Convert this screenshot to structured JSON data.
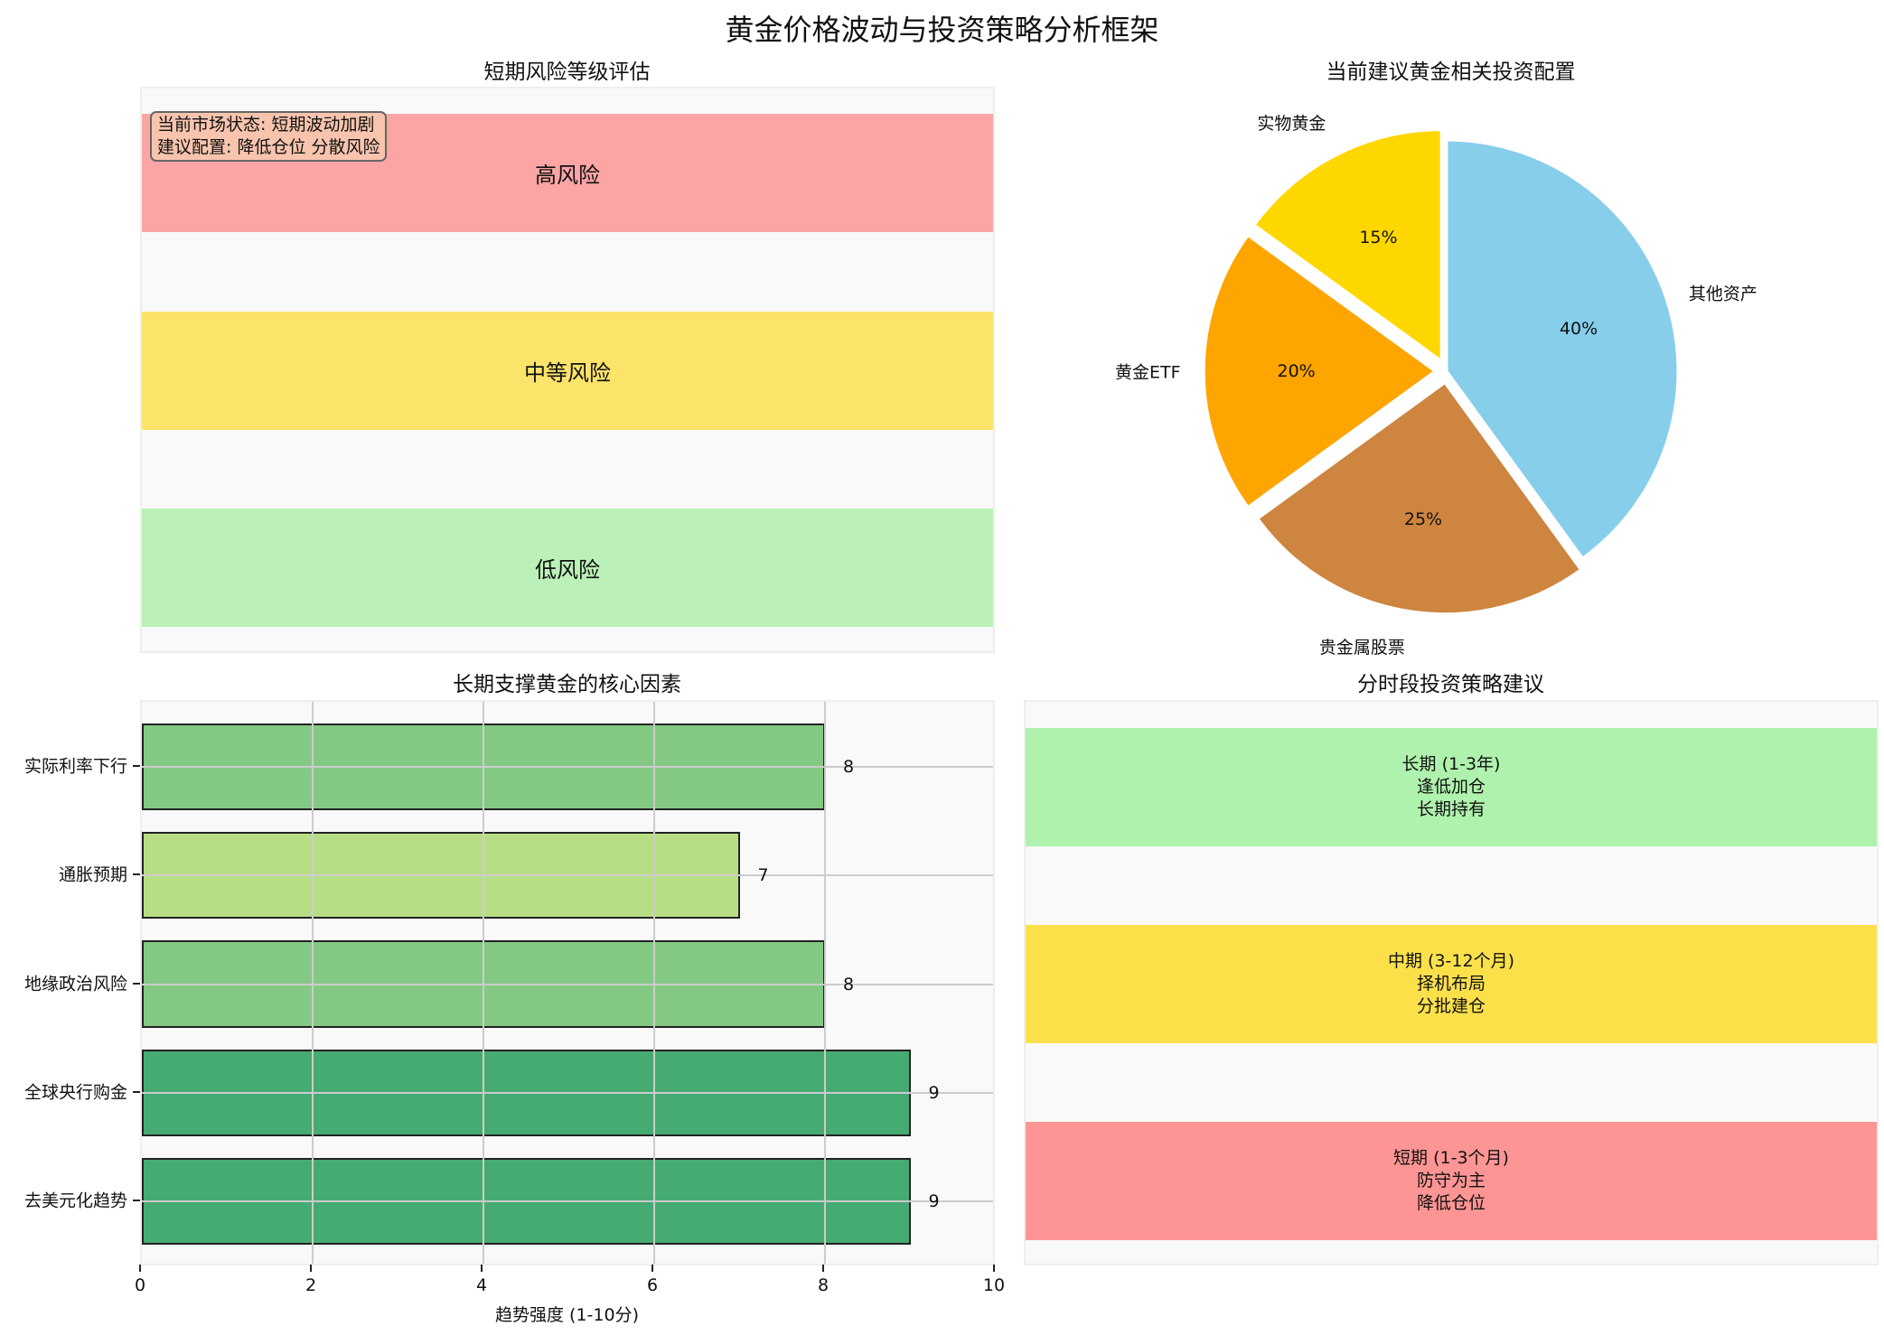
{
  "suptitle": "黄金价格波动与投资策略分析框架",
  "risk_panel": {
    "title": "短期风险等级评估",
    "note": "当前市场状态: 短期波动加剧\n建议配置: 降低仓位 分散风险",
    "bands": [
      {
        "label": "高风险",
        "color": "#fca5a5"
      },
      {
        "label": "中等风险",
        "color": "#fce36a"
      },
      {
        "label": "低风险",
        "color": "#bbf1b8"
      }
    ]
  },
  "allocation_panel": {
    "title": "当前建议黄金相关投资配置"
  },
  "factors_panel": {
    "title": "长期支撑黄金的核心因素",
    "xlabel": "趋势强度 (1-10分)",
    "xticks": [
      "0",
      "2",
      "4",
      "6",
      "8",
      "10"
    ]
  },
  "strategy_panel": {
    "title": "分时段投资策略建议",
    "bands": [
      {
        "label": "长期 (1-3年)\n逢低加仓\n长期持有",
        "color": "#aff2ad"
      },
      {
        "label": "中期 (3-12个月)\n择机布局\n分批建仓",
        "color": "#fce04a"
      },
      {
        "label": "短期 (1-3个月)\n防守为主\n降低仓位",
        "color": "#fd9594"
      }
    ]
  },
  "chart_data": [
    {
      "type": "table",
      "title": "短期风险等级评估",
      "rows": [
        "高风险",
        "中等风险",
        "低风险"
      ],
      "annotation": "当前市场状态: 短期波动加剧 / 建议配置: 降低仓位 分散风险"
    },
    {
      "type": "pie",
      "title": "当前建议黄金相关投资配置",
      "labels": [
        "其他资产",
        "贵金属股票",
        "黄金ETF",
        "实物黄金"
      ],
      "values": [
        40,
        25,
        20,
        15
      ],
      "value_labels": [
        "40%",
        "25%",
        "20%",
        "15%"
      ],
      "colors": [
        "#87ceeb",
        "#cd853f",
        "#ffa500",
        "#ffd700"
      ],
      "explode": [
        0,
        0.05,
        0.05,
        0.05
      ],
      "start_angle": 90,
      "direction": "clockwise"
    },
    {
      "type": "bar",
      "orientation": "horizontal",
      "title": "长期支撑黄金的核心因素",
      "categories": [
        "实际利率下行",
        "通胀预期",
        "地缘政治风险",
        "全球央行购金",
        "去美元化趋势"
      ],
      "values": [
        8,
        7,
        8,
        9,
        9
      ],
      "colors": [
        "#84c983",
        "#b8de85",
        "#84c983",
        "#46ab72",
        "#46ab72"
      ],
      "xlabel": "趋势强度 (1-10分)",
      "ylabel": "",
      "xlim": [
        0,
        10
      ],
      "xticks": [
        0,
        2,
        4,
        6,
        8,
        10
      ],
      "grid": true
    },
    {
      "type": "table",
      "title": "分时段投资策略建议",
      "rows": [
        {
          "period": "长期 (1-3年)",
          "actions": [
            "逢低加仓",
            "长期持有"
          ]
        },
        {
          "period": "中期 (3-12个月)",
          "actions": [
            "择机布局",
            "分批建仓"
          ]
        },
        {
          "period": "短期 (1-3个月)",
          "actions": [
            "防守为主",
            "降低仓位"
          ]
        }
      ]
    }
  ]
}
